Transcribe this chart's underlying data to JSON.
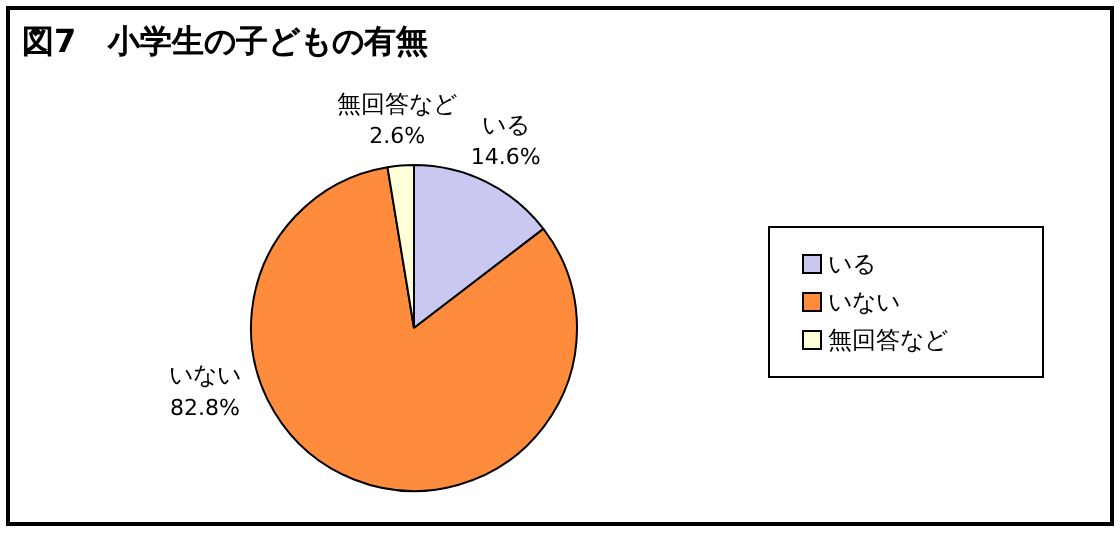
{
  "chart_data": {
    "type": "pie",
    "title": "図7　小学生の子どもの有無",
    "categories": [
      "いる",
      "いない",
      "無回答など"
    ],
    "values": [
      14.6,
      82.8,
      2.6
    ],
    "colors": [
      "#c8c8f0",
      "#ff8c3c",
      "#ffffd8"
    ],
    "value_labels": [
      "14.6%",
      "82.8%",
      "2.6%"
    ],
    "legend": "right"
  }
}
